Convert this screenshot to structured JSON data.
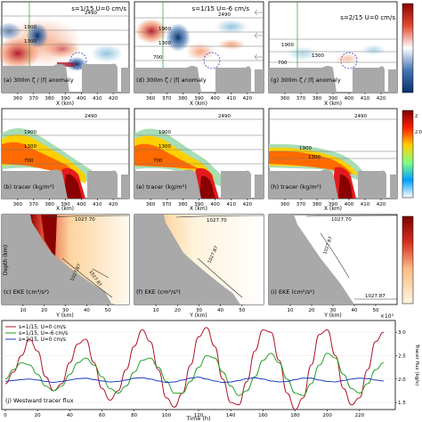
{
  "panels": [
    {
      "id": "a",
      "label": "(a)  300m ζ / |f| anomaly",
      "annot": "s=1/15  U=0 cm/s",
      "xlabel": "X (km)",
      "xticks": [
        "360",
        "370",
        "380",
        "390",
        "400",
        "410",
        "420"
      ],
      "contours": [
        "2490",
        "1900",
        "1300"
      ]
    },
    {
      "id": "d",
      "label": "(d)  300m ζ / |f| anomaly",
      "annot": "s=1/15  U=-6 cm/s",
      "xlabel": "X (km)",
      "xticks": [
        "360",
        "370",
        "380",
        "390",
        "400",
        "410",
        "420"
      ],
      "contours": [
        "2490",
        "1900",
        "1300",
        "700"
      ]
    },
    {
      "id": "g",
      "label": "(g)  300m ζ / |f| anomaly",
      "annot": "s=2/15  U=0 cm/s",
      "xlabel": "X (km)",
      "xticks": [
        "360",
        "370",
        "380",
        "390",
        "400",
        "410",
        "420"
      ],
      "contours": [
        "1900",
        "1300",
        "700"
      ]
    },
    {
      "id": "b",
      "label": "(b)  tracer (kg/m²)",
      "xlabel": "X (km)",
      "xticks": [
        "360",
        "370",
        "380",
        "390",
        "400",
        "410",
        "420"
      ],
      "contours": [
        "2490",
        "1900",
        "1300",
        "700"
      ]
    },
    {
      "id": "e",
      "label": "(e)  tracer (kg/m²)",
      "xlabel": "X (km)",
      "xticks": [
        "360",
        "370",
        "380",
        "390",
        "400",
        "410",
        "420"
      ],
      "contours": [
        "2490",
        "1900",
        "1300",
        "700"
      ]
    },
    {
      "id": "h",
      "label": "(h)  tracer (kg/m²)",
      "xlabel": "X (km)",
      "xticks": [
        "360",
        "370",
        "380",
        "390",
        "400",
        "410",
        "420"
      ],
      "contours": [
        "2490",
        "1900",
        "1300"
      ]
    },
    {
      "id": "c",
      "label": "(c)  EKE (cm²/s²)",
      "xlabel": "Y (km)",
      "xticks": [
        "10",
        "20",
        "30",
        "40",
        "50"
      ],
      "contours": [
        "1027.70",
        "1027.87",
        "1027.87"
      ],
      "ylabel": "Depth (km)",
      "yticks": [
        "0",
        "1",
        "2",
        "3"
      ]
    },
    {
      "id": "f",
      "label": "(f)  EKE (cm²/s²)",
      "xlabel": "Y (km)",
      "xticks": [
        "10",
        "20",
        "30",
        "40",
        "50"
      ],
      "contours": [
        "1027.70",
        "1027.87"
      ]
    },
    {
      "id": "i",
      "label": "(i)  EKE (cm²/s²)",
      "xlabel": "Y (km)",
      "xticks": [
        "10",
        "20",
        "30",
        "40",
        "50"
      ],
      "contours": [
        "1027.70",
        "1027.87",
        "1027.87"
      ]
    }
  ],
  "row_yticks": {
    "top": [
      "2",
      "2",
      "4",
      "6"
    ],
    "middle": [
      "2",
      "1",
      "0"
    ]
  },
  "colorbars": {
    "eke_ticks": [
      "2",
      "1",
      "0"
    ],
    "tracer_ticks": [
      "2.5",
      "2.0",
      "1.5"
    ],
    "tracer_label": "Tracer flux (kg/s)"
  },
  "chart_data": {
    "type": "line",
    "title": "",
    "label": "(j)  Westward tracer flux",
    "xlabel": "Time (h)",
    "ylabel": "Tracer flux (kg/s)",
    "multiplier": "×10⁵",
    "xlim": [
      0,
      240
    ],
    "ylim": [
      1.35,
      3.25
    ],
    "x_ticks": [
      0,
      20,
      40,
      60,
      80,
      100,
      120,
      140,
      160,
      180,
      200,
      220
    ],
    "y_ticks": [
      1.5,
      2.0,
      2.5,
      3.0
    ],
    "legend_position": "top-left",
    "x": [
      0,
      5,
      10,
      15,
      20,
      25,
      30,
      35,
      40,
      45,
      50,
      55,
      60,
      65,
      70,
      75,
      80,
      85,
      90,
      95,
      100,
      105,
      110,
      115,
      120,
      125,
      130,
      135,
      140,
      145,
      150,
      155,
      160,
      165,
      170,
      175,
      180,
      185,
      190,
      195,
      200,
      205,
      210,
      215,
      220,
      225,
      230,
      235
    ],
    "series": [
      {
        "name": "s=1/15, U=0 cm/s",
        "color": "#b2182b",
        "values": [
          1.9,
          2.15,
          2.5,
          2.85,
          2.6,
          2.05,
          1.75,
          1.9,
          2.35,
          2.75,
          2.85,
          2.35,
          1.8,
          1.55,
          1.75,
          2.2,
          2.7,
          3.05,
          2.8,
          2.2,
          1.6,
          1.4,
          1.7,
          2.3,
          2.9,
          3.1,
          2.7,
          2.0,
          1.5,
          1.45,
          1.95,
          2.6,
          3.05,
          3.0,
          2.4,
          1.7,
          1.35,
          1.6,
          2.3,
          2.95,
          3.05,
          2.5,
          1.8,
          1.45,
          1.6,
          2.2,
          2.8,
          3.0
        ]
      },
      {
        "name": "s=1/15, U=-6 cm/s",
        "color": "#2ca02c",
        "values": [
          2.0,
          2.2,
          2.35,
          2.3,
          2.1,
          1.85,
          1.75,
          1.85,
          2.1,
          2.35,
          2.45,
          2.3,
          2.05,
          1.8,
          1.7,
          1.85,
          2.15,
          2.4,
          2.45,
          2.25,
          1.95,
          1.7,
          1.7,
          1.95,
          2.25,
          2.5,
          2.45,
          2.15,
          1.85,
          1.65,
          1.75,
          2.05,
          2.4,
          2.55,
          2.35,
          2.0,
          1.7,
          1.65,
          1.9,
          2.3,
          2.55,
          2.45,
          2.1,
          1.8,
          1.7,
          1.9,
          2.2,
          2.35
        ]
      },
      {
        "name": "s=2/15, U=0 cm/s",
        "color": "#1f3fbf",
        "values": [
          1.95,
          1.97,
          1.99,
          2.0,
          1.98,
          1.95,
          1.93,
          1.95,
          1.98,
          2.01,
          2.02,
          1.99,
          1.96,
          1.94,
          1.95,
          1.98,
          2.02,
          2.03,
          2.0,
          1.96,
          1.93,
          1.94,
          1.98,
          2.02,
          2.04,
          2.0,
          1.96,
          1.93,
          1.94,
          1.97,
          2.01,
          2.03,
          2.0,
          1.96,
          1.94,
          1.95,
          1.99,
          2.02,
          2.02,
          1.98,
          1.95,
          1.94,
          1.97,
          2.0,
          2.02,
          2.01,
          1.98,
          1.96
        ]
      }
    ]
  }
}
